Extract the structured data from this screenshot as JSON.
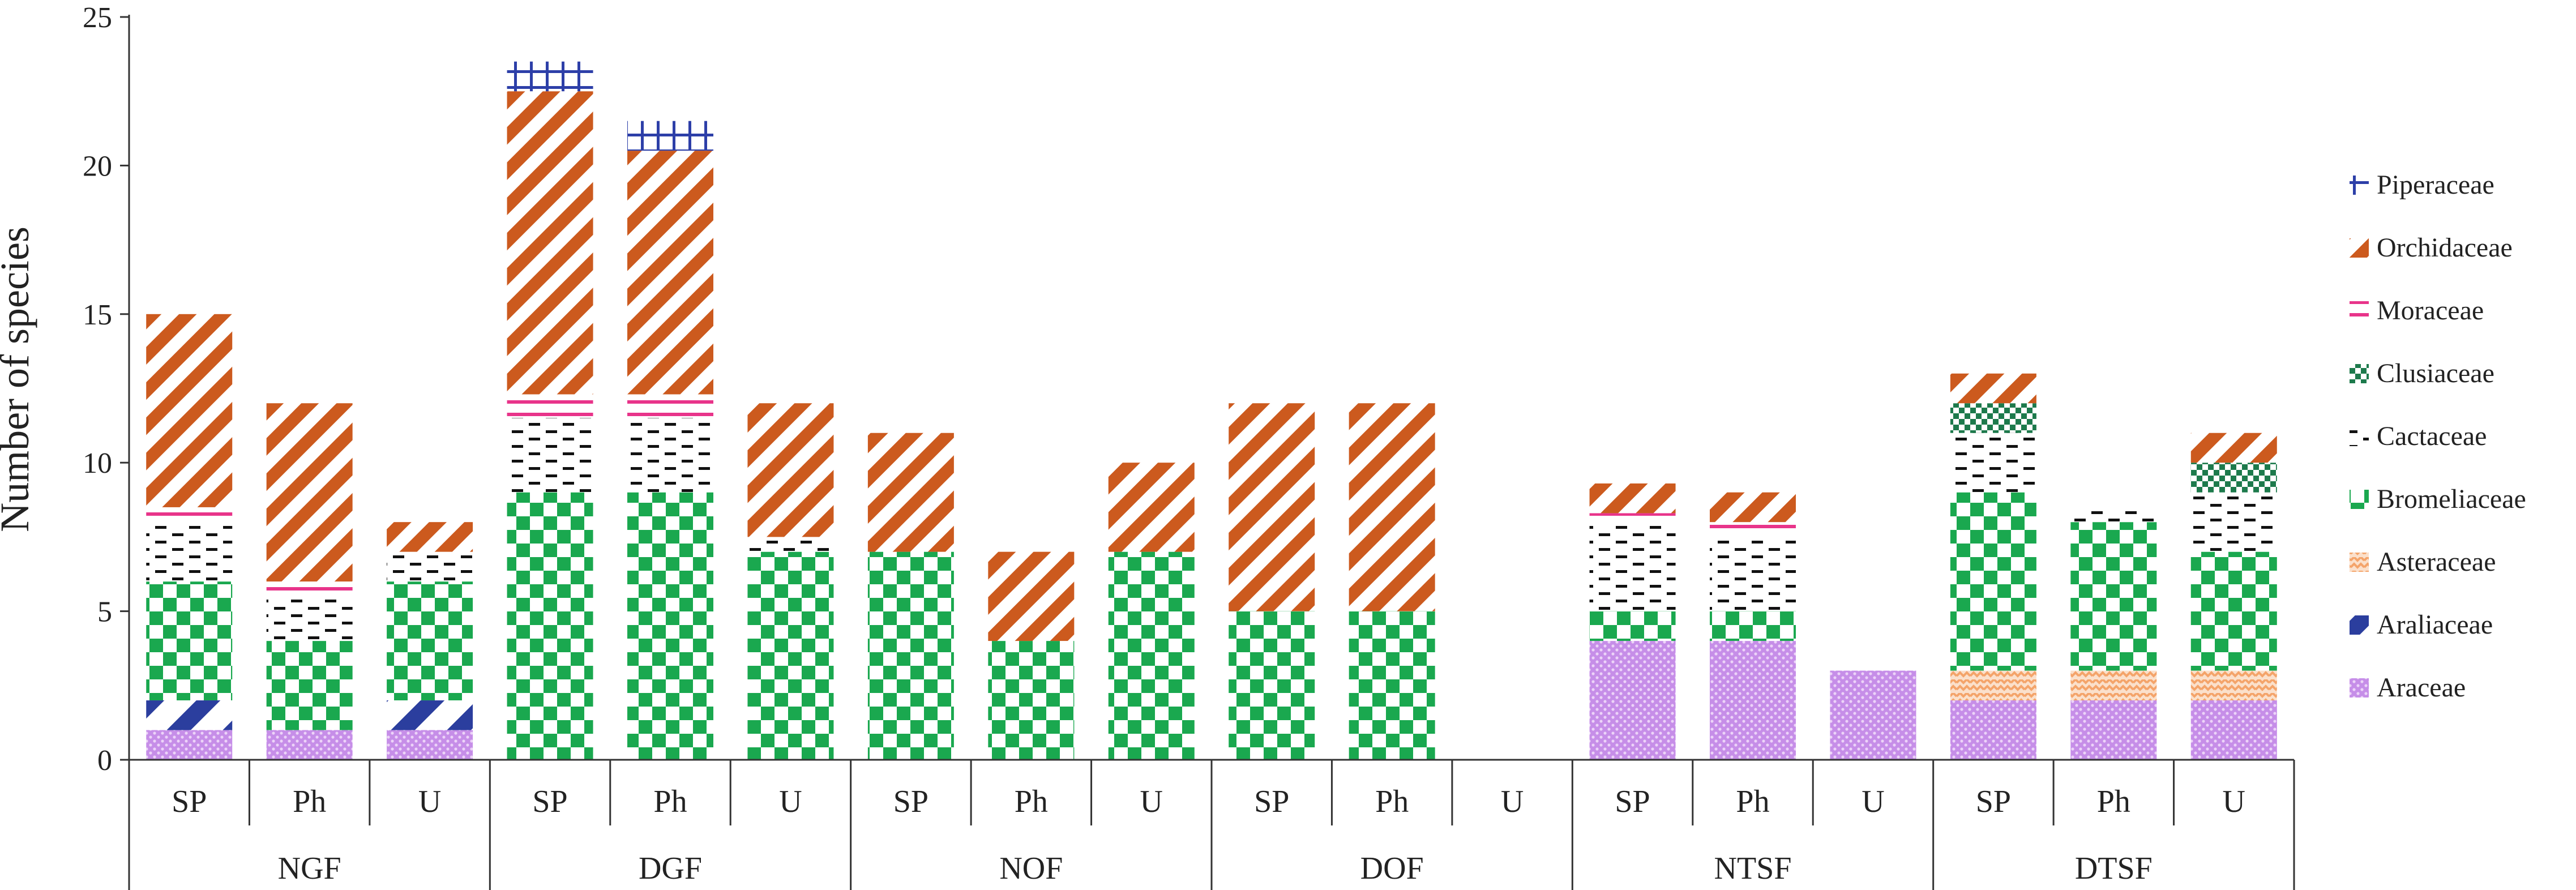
{
  "chart_data": {
    "type": "bar",
    "stacked": true,
    "title": "",
    "xlabel": "",
    "ylabel": "Number of species",
    "ylim": [
      0,
      25
    ],
    "yticks": [
      0,
      5,
      10,
      15,
      20,
      25
    ],
    "grid": false,
    "legend_position": "right",
    "groups": [
      "NGF",
      "DGF",
      "NOF",
      "DOF",
      "NTSF",
      "DTSF"
    ],
    "subcategories": [
      "SP",
      "Ph",
      "U"
    ],
    "categories": [
      "NGF SP",
      "NGF Ph",
      "NGF U",
      "DGF SP",
      "DGF Ph",
      "DGF U",
      "NOF SP",
      "NOF Ph",
      "NOF U",
      "DOF SP",
      "DOF Ph",
      "DOF U",
      "NTSF SP",
      "NTSF Ph",
      "NTSF U",
      "DTSF SP",
      "DTSF Ph",
      "DTSF U"
    ],
    "series": [
      {
        "name": "Araceae",
        "color": "#c68ee8",
        "pattern": "dots",
        "values": [
          1,
          1,
          1,
          0,
          0,
          0,
          0,
          0,
          0,
          0,
          0,
          0,
          4,
          4,
          3,
          2,
          2,
          2
        ]
      },
      {
        "name": "Araliaceae",
        "color": "#2b3e9e",
        "pattern": "wide-diagonal",
        "values": [
          1,
          0,
          1,
          0,
          0,
          0,
          0,
          0,
          0,
          0,
          0,
          0,
          0,
          0,
          0,
          0,
          0,
          0
        ]
      },
      {
        "name": "Asteraceae",
        "color": "#f4a46a",
        "pattern": "zigzag",
        "values": [
          0,
          0,
          0,
          0,
          0,
          0,
          0,
          0,
          0,
          0,
          0,
          0,
          0,
          0,
          0,
          1,
          1,
          1
        ]
      },
      {
        "name": "Bromeliaceae",
        "color": "#1aa84f",
        "pattern": "checker",
        "values": [
          4,
          3,
          4,
          9,
          9,
          7,
          7,
          4,
          7,
          5,
          5,
          0,
          1,
          1,
          0,
          6,
          5,
          4
        ]
      },
      {
        "name": "Cactaceae",
        "color": "#111111",
        "pattern": "dashes",
        "values": [
          2,
          1.5,
          1,
          2.5,
          2.5,
          0.5,
          0,
          0,
          0,
          0,
          0,
          0,
          3,
          2.5,
          0,
          2,
          0.5,
          2
        ]
      },
      {
        "name": "Clusiaceae",
        "color": "#1d7a4c",
        "pattern": "small-checker",
        "values": [
          0,
          0,
          0,
          0,
          0,
          0,
          0,
          0,
          0,
          0,
          0,
          0,
          0,
          0,
          0,
          1,
          0,
          1
        ]
      },
      {
        "name": "Moraceae",
        "color": "#e8348a",
        "pattern": "lines",
        "values": [
          0.5,
          0.5,
          0,
          0.8,
          0.8,
          0,
          0,
          0,
          0,
          0,
          0,
          0,
          0.3,
          0.5,
          0,
          0,
          0,
          0
        ]
      },
      {
        "name": "Orchidaceae",
        "color": "#cc5a1e",
        "pattern": "diagonal",
        "values": [
          6.5,
          6,
          1,
          10.2,
          8.2,
          4.5,
          4,
          3,
          3,
          7,
          7,
          0,
          1,
          1,
          0,
          1,
          0,
          1
        ]
      },
      {
        "name": "Piperaceae",
        "color": "#2d3fa8",
        "pattern": "grid",
        "values": [
          0,
          0,
          0,
          1,
          1,
          0,
          0,
          0,
          0,
          0,
          0,
          0,
          0,
          0,
          0,
          0,
          0,
          0
        ]
      }
    ],
    "legend_order": [
      "Piperaceae",
      "Orchidaceae",
      "Moraceae",
      "Clusiaceae",
      "Cactaceae",
      "Bromeliaceae",
      "Asteraceae",
      "Araliaceae",
      "Araceae"
    ]
  }
}
